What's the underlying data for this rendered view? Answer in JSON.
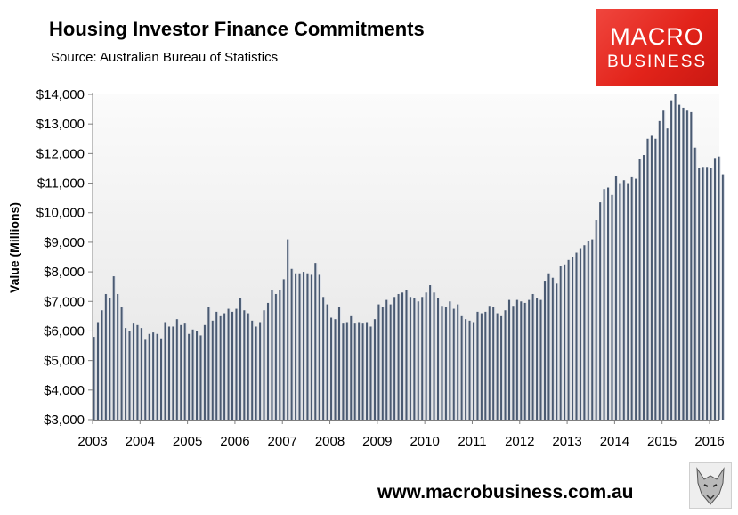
{
  "header": {
    "title": "Housing Investor Finance Commitments",
    "subtitle": "Source: Australian Bureau of Statistics"
  },
  "logo": {
    "line1": "MACRO",
    "line2": "BUSINESS"
  },
  "footer": {
    "website": "www.macrobusiness.com.au"
  },
  "colors": {
    "bar": "#4a5a72",
    "bar_highlight": "#d8dde6",
    "plot_bg_top": "#fbfbfb",
    "plot_bg_bottom": "#e4e4e4",
    "logo_red": "#e2231a"
  },
  "chart_data": {
    "type": "bar",
    "title": "Housing Investor Finance Commitments",
    "xlabel": "",
    "ylabel": "Value (Millions)",
    "ylim": [
      3000,
      14000
    ],
    "yticks": [
      3000,
      4000,
      5000,
      6000,
      7000,
      8000,
      9000,
      10000,
      11000,
      12000,
      13000,
      14000
    ],
    "ytick_labels": [
      "$3,000",
      "$4,000",
      "$5,000",
      "$6,000",
      "$7,000",
      "$8,000",
      "$9,000",
      "$10,000",
      "$11,000",
      "$12,000",
      "$13,000",
      "$14,000"
    ],
    "xtick_labels": [
      "2003",
      "2004",
      "2005",
      "2006",
      "2007",
      "2008",
      "2009",
      "2010",
      "2011",
      "2012",
      "2013",
      "2014",
      "2015",
      "2016"
    ],
    "start": "2003-01",
    "frequency": "monthly",
    "series": [
      {
        "name": "Housing Investor Finance Commitments",
        "values": [
          5800,
          6300,
          6700,
          7250,
          7100,
          7850,
          7250,
          6800,
          6100,
          6000,
          6250,
          6200,
          6100,
          5700,
          5900,
          5950,
          5900,
          5750,
          6300,
          6150,
          6150,
          6400,
          6200,
          6250,
          5900,
          6050,
          6000,
          5850,
          6200,
          6800,
          6350,
          6650,
          6500,
          6600,
          6750,
          6650,
          6750,
          7100,
          6700,
          6600,
          6350,
          6150,
          6300,
          6700,
          6950,
          7400,
          7250,
          7400,
          7750,
          9100,
          8100,
          7950,
          7950,
          8000,
          7950,
          7900,
          8300,
          7900,
          7150,
          6900,
          6450,
          6400,
          6800,
          6250,
          6300,
          6500,
          6250,
          6300,
          6250,
          6300,
          6150,
          6400,
          6900,
          6800,
          7050,
          6900,
          7150,
          7250,
          7300,
          7400,
          7150,
          7100,
          7000,
          7150,
          7300,
          7550,
          7300,
          7100,
          6850,
          6800,
          7000,
          6750,
          6900,
          6500,
          6400,
          6350,
          6300,
          6650,
          6600,
          6650,
          6850,
          6800,
          6600,
          6500,
          6700,
          7050,
          6850,
          7050,
          7000,
          6950,
          7050,
          7250,
          7100,
          7050,
          7700,
          7950,
          7800,
          7600,
          8200,
          8250,
          8400,
          8500,
          8650,
          8800,
          8900,
          9050,
          9100,
          9750,
          10350,
          10800,
          10850,
          10600,
          11250,
          11000,
          11100,
          11000,
          11200,
          11150,
          11800,
          11950,
          12500,
          12600,
          12500,
          13100,
          13450,
          12850,
          13800,
          14000,
          13650,
          13550,
          13450,
          13400,
          12200,
          11500,
          11550,
          11550,
          11500,
          11850,
          11900,
          11300
        ]
      }
    ]
  }
}
